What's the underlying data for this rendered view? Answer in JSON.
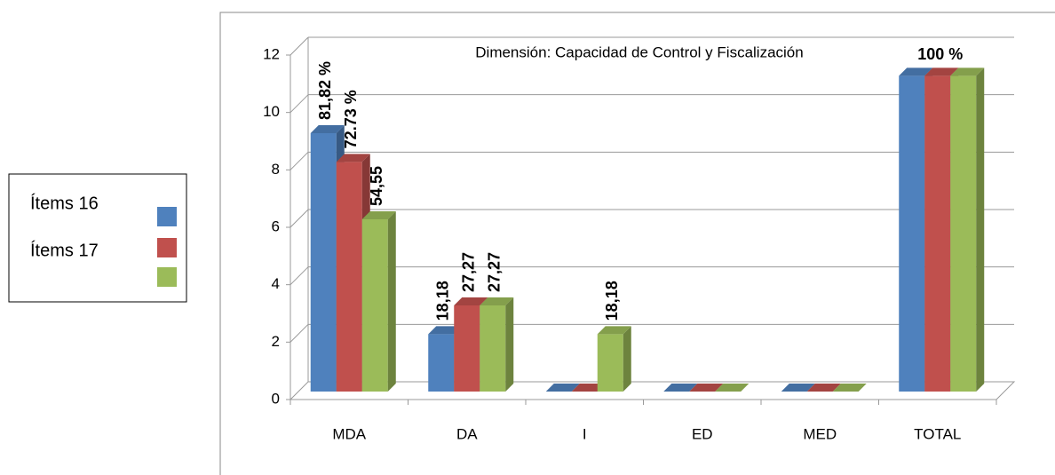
{
  "chart_data": {
    "type": "bar3d",
    "title": "Dimensión: Capacidad de Control y Fiscalización",
    "categories": [
      "MDA",
      "DA",
      "I",
      "ED",
      "MED",
      "TOTAL"
    ],
    "series": [
      {
        "name": "Ítems 16",
        "color": "#4f81bd",
        "values": [
          9,
          2,
          0,
          0,
          0,
          11
        ],
        "value_labels": [
          "81,82 %",
          "18,18",
          null,
          null,
          null,
          null
        ]
      },
      {
        "name": "Ítems 17",
        "color": "#c0504d",
        "values": [
          8,
          3,
          0,
          0,
          0,
          11
        ],
        "value_labels": [
          "72.73 %",
          "27,27",
          null,
          null,
          null,
          "100 %"
        ]
      },
      {
        "name": null,
        "color": "#9bbb59",
        "values": [
          6,
          3,
          2,
          0,
          0,
          11
        ],
        "value_labels": [
          "54,55",
          "27,27",
          "18,18",
          null,
          null,
          null
        ]
      }
    ],
    "ylim": [
      0,
      12
    ],
    "yticks": [
      0,
      2,
      4,
      6,
      8,
      10,
      12
    ],
    "grid": true
  }
}
